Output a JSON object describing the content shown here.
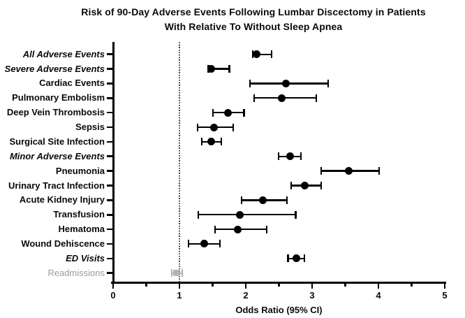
{
  "title": {
    "line1": "Risk of 90-Day Adverse Events Following Lumbar Discectomy in Patients",
    "line2": "With Relative To Without Sleep Apnea"
  },
  "chart_data": {
    "type": "scatter",
    "subtype": "forest-plot",
    "title": "Risk of 90-Day Adverse Events Following Lumbar Discectomy in Patients With Relative To Without Sleep Apnea",
    "xlabel": "Odds Ratio (95% CI)",
    "ylabel": "",
    "xlim": [
      0,
      5
    ],
    "x_major_ticks": [
      0,
      1,
      2,
      3,
      4,
      5
    ],
    "x_minor_ticks": [
      0.5,
      1.5,
      2.5,
      3.5,
      4.5
    ],
    "reference_line_x": 1,
    "grid": false,
    "legend": "none",
    "rows": [
      {
        "label": "All Adverse Events",
        "or": 2.16,
        "ci_low": 2.1,
        "ci_high": 2.4,
        "emphasis": "bold-italic",
        "color": "#000000",
        "label_color": "#0a0a0a",
        "marker": "circle"
      },
      {
        "label": "Severe Adverse Events",
        "or": 1.48,
        "ci_low": 1.43,
        "ci_high": 1.76,
        "emphasis": "bold-italic",
        "color": "#000000",
        "label_color": "#0a0a0a",
        "marker": "circle"
      },
      {
        "label": "Cardiac Events",
        "or": 2.61,
        "ci_low": 2.06,
        "ci_high": 3.25,
        "emphasis": "bold",
        "color": "#000000",
        "label_color": "#0a0a0a",
        "marker": "circle"
      },
      {
        "label": "Pulmonary Embolism",
        "or": 2.54,
        "ci_low": 2.12,
        "ci_high": 3.07,
        "emphasis": "bold",
        "color": "#000000",
        "label_color": "#0a0a0a",
        "marker": "circle"
      },
      {
        "label": "Deep Vein Thrombosis",
        "or": 1.73,
        "ci_low": 1.5,
        "ci_high": 1.98,
        "emphasis": "bold",
        "color": "#000000",
        "label_color": "#0a0a0a",
        "marker": "circle"
      },
      {
        "label": "Sepsis",
        "or": 1.52,
        "ci_low": 1.27,
        "ci_high": 1.82,
        "emphasis": "bold",
        "color": "#000000",
        "label_color": "#0a0a0a",
        "marker": "circle"
      },
      {
        "label": "Surgical Site Infection",
        "or": 1.48,
        "ci_low": 1.33,
        "ci_high": 1.64,
        "emphasis": "bold",
        "color": "#000000",
        "label_color": "#0a0a0a",
        "marker": "circle"
      },
      {
        "label": "Minor Adverse Events",
        "or": 2.67,
        "ci_low": 2.49,
        "ci_high": 2.84,
        "emphasis": "bold-italic",
        "color": "#000000",
        "label_color": "#0a0a0a",
        "marker": "circle"
      },
      {
        "label": "Pneumonia",
        "or": 3.55,
        "ci_low": 3.13,
        "ci_high": 4.02,
        "emphasis": "bold",
        "color": "#000000",
        "label_color": "#0a0a0a",
        "marker": "circle"
      },
      {
        "label": "Urinary Tract Infection",
        "or": 2.89,
        "ci_low": 2.68,
        "ci_high": 3.14,
        "emphasis": "bold",
        "color": "#000000",
        "label_color": "#0a0a0a",
        "marker": "circle"
      },
      {
        "label": "Acute Kidney Injury",
        "or": 2.26,
        "ci_low": 1.93,
        "ci_high": 2.63,
        "emphasis": "bold",
        "color": "#000000",
        "label_color": "#0a0a0a",
        "marker": "circle"
      },
      {
        "label": "Transfusion",
        "or": 1.91,
        "ci_low": 1.28,
        "ci_high": 2.76,
        "emphasis": "bold",
        "color": "#000000",
        "label_color": "#0a0a0a",
        "marker": "circle"
      },
      {
        "label": "Hematoma",
        "or": 1.88,
        "ci_low": 1.53,
        "ci_high": 2.32,
        "emphasis": "bold",
        "color": "#000000",
        "label_color": "#0a0a0a",
        "marker": "circle"
      },
      {
        "label": "Wound Dehiscence",
        "or": 1.37,
        "ci_low": 1.13,
        "ci_high": 1.62,
        "emphasis": "bold",
        "color": "#000000",
        "label_color": "#0a0a0a",
        "marker": "circle"
      },
      {
        "label": "ED Visits",
        "or": 2.76,
        "ci_low": 2.63,
        "ci_high": 2.89,
        "emphasis": "bold-italic",
        "color": "#000000",
        "label_color": "#0a0a0a",
        "marker": "circle"
      },
      {
        "label": "Readmissions",
        "or": 0.95,
        "ci_low": 0.88,
        "ci_high": 1.05,
        "emphasis": "regular",
        "color": "#b3b3b3",
        "label_color": "#9b9b9b",
        "marker": "square"
      }
    ]
  },
  "colors": {
    "background": "#ffffff",
    "axis": "#000000",
    "reference_line": "#3c3c3c",
    "nonsignificant_series": "#b3b3b3"
  }
}
